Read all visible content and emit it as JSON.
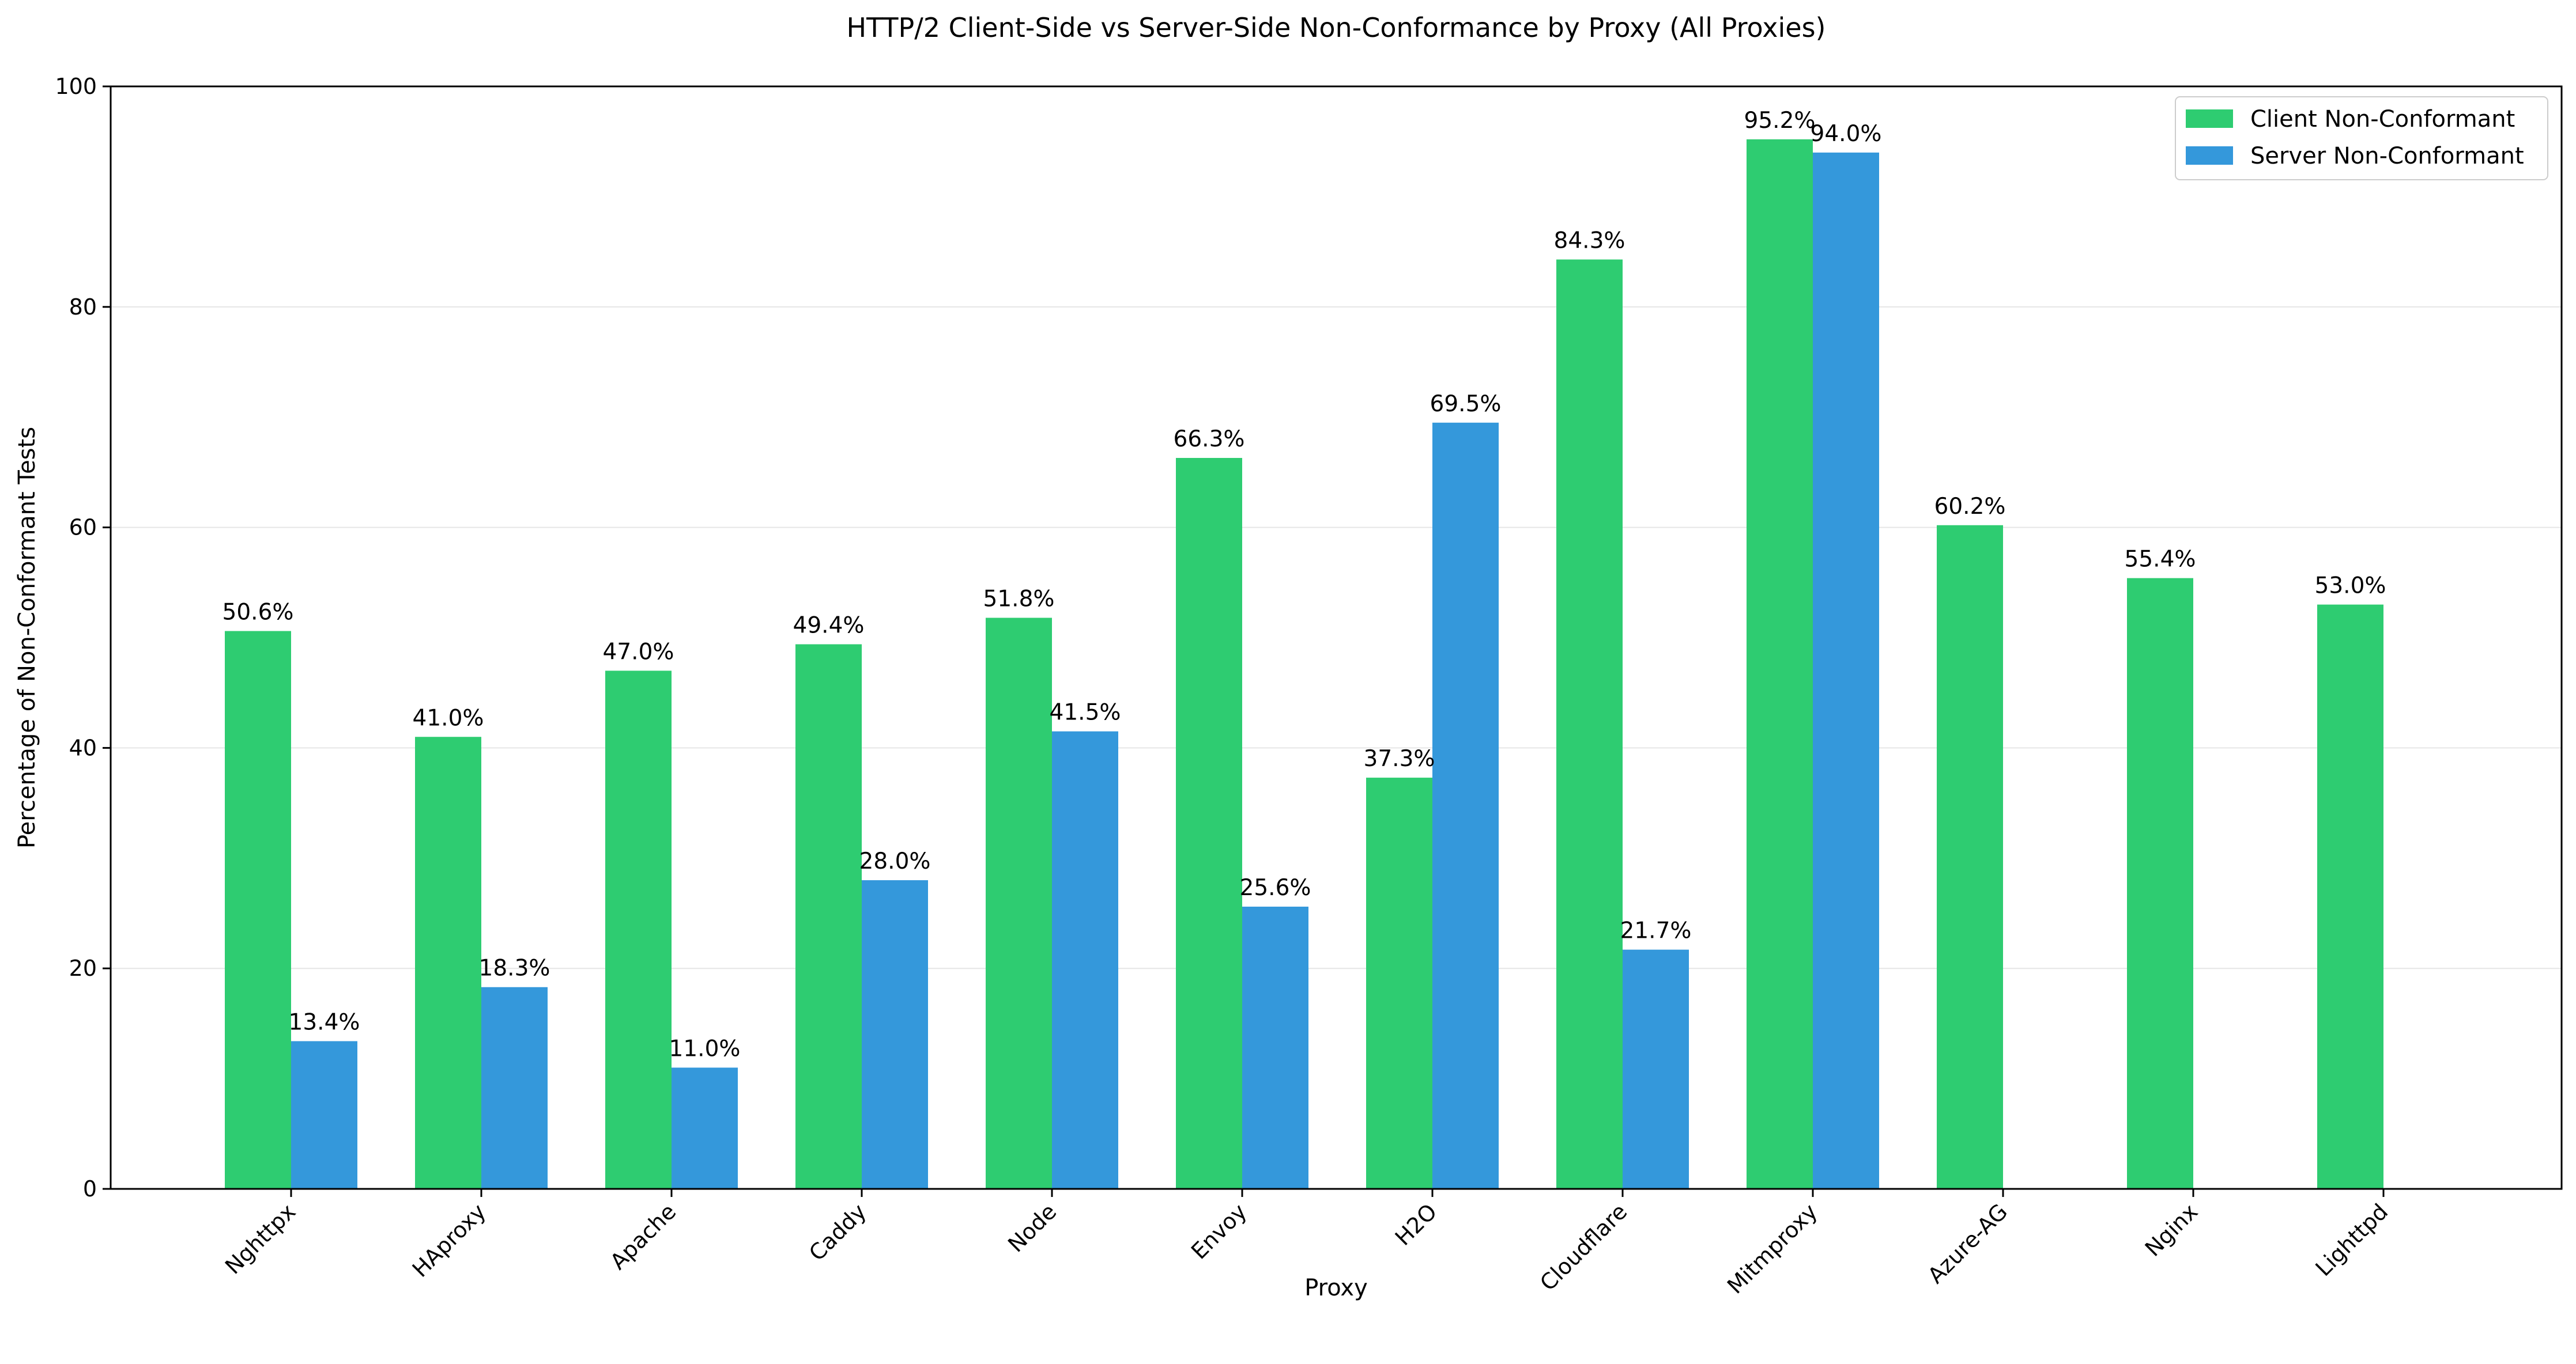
{
  "chart_data": {
    "type": "bar",
    "title": "HTTP/2 Client-Side vs Server-Side Non-Conformance by Proxy (All Proxies)",
    "xlabel": "Proxy",
    "ylabel": "Percentage of Non-Conformant Tests",
    "ylim": [
      0,
      100
    ],
    "yticks": [
      0,
      20,
      40,
      60,
      80,
      100
    ],
    "grid": "horizontal",
    "legend_position": "top-right",
    "categories": [
      "Nghttpx",
      "HAproxy",
      "Apache",
      "Caddy",
      "Node",
      "Envoy",
      "H2O",
      "Cloudflare",
      "Mitmproxy",
      "Azure-AG",
      "Nginx",
      "Lighttpd"
    ],
    "series": [
      {
        "name": "Client Non-Conformant",
        "color": "#2ecc71",
        "values": [
          50.6,
          41.0,
          47.0,
          49.4,
          51.8,
          66.3,
          37.3,
          84.3,
          95.2,
          60.2,
          55.4,
          53.0
        ],
        "labels": [
          "50.6%",
          "41.0%",
          "47.0%",
          "49.4%",
          "51.8%",
          "66.3%",
          "37.3%",
          "84.3%",
          "95.2%",
          "60.2%",
          "55.4%",
          "53.0%"
        ]
      },
      {
        "name": "Server Non-Conformant",
        "color": "#3498db",
        "values": [
          13.4,
          18.3,
          11.0,
          28.0,
          41.5,
          25.6,
          69.5,
          21.7,
          94.0,
          null,
          null,
          null
        ],
        "labels": [
          "13.4%",
          "18.3%",
          "11.0%",
          "28.0%",
          "41.5%",
          "25.6%",
          "69.5%",
          "21.7%",
          "94.0%",
          null,
          null,
          null
        ]
      }
    ]
  }
}
